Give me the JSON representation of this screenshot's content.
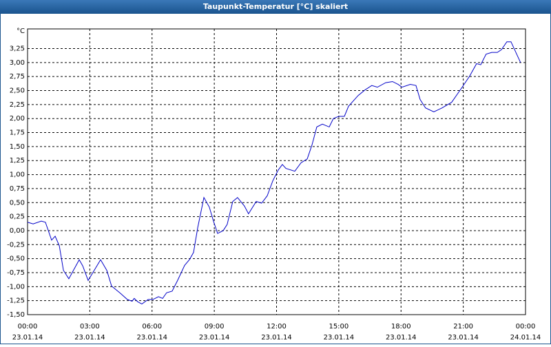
{
  "chart_data": {
    "type": "line",
    "title": "Taupunkt-Temperatur [°C] skaliert",
    "y_label": "°C",
    "x": [
      0,
      0.27,
      0.66,
      0.86,
      1.16,
      1.33,
      1.53,
      1.73,
      1.99,
      2.49,
      2.66,
      2.92,
      3.52,
      3.82,
      4.05,
      4.48,
      4.81,
      5.04,
      5.14,
      5.31,
      5.51,
      5.81,
      6.04,
      6.31,
      6.51,
      6.7,
      6.97,
      7.23,
      7.57,
      7.8,
      8.0,
      8.2,
      8.5,
      8.76,
      8.96,
      9.16,
      9.43,
      9.62,
      9.89,
      10.12,
      10.45,
      10.65,
      11.02,
      11.28,
      11.55,
      11.82,
      12.08,
      12.28,
      12.45,
      12.88,
      13.18,
      13.48,
      13.71,
      13.94,
      14.21,
      14.54,
      14.74,
      15.0,
      15.27,
      15.47,
      15.93,
      16.26,
      16.59,
      16.86,
      17.26,
      17.59,
      17.86,
      18.05,
      18.45,
      18.72,
      18.92,
      19.18,
      19.58,
      19.98,
      20.44,
      20.91,
      21.31,
      21.64,
      21.84,
      22.1,
      22.37,
      22.64,
      22.84,
      23.1,
      23.3,
      23.76
    ],
    "series": [
      {
        "color": "#0000c8",
        "values": [
          0.15,
          0.12,
          0.17,
          0.15,
          -0.17,
          -0.1,
          -0.27,
          -0.71,
          -0.86,
          -0.52,
          -0.63,
          -0.89,
          -0.52,
          -0.71,
          -0.99,
          -1.12,
          -1.23,
          -1.26,
          -1.21,
          -1.27,
          -1.31,
          -1.23,
          -1.23,
          -1.18,
          -1.21,
          -1.11,
          -1.08,
          -0.89,
          -0.62,
          -0.52,
          -0.39,
          0.05,
          0.59,
          0.42,
          0.17,
          -0.05,
          0.0,
          0.11,
          0.52,
          0.59,
          0.44,
          0.3,
          0.52,
          0.49,
          0.62,
          0.89,
          1.08,
          1.18,
          1.11,
          1.06,
          1.21,
          1.28,
          1.53,
          1.85,
          1.9,
          1.85,
          2.0,
          2.04,
          2.04,
          2.22,
          2.41,
          2.51,
          2.59,
          2.56,
          2.64,
          2.66,
          2.61,
          2.56,
          2.61,
          2.59,
          2.34,
          2.19,
          2.12,
          2.19,
          2.29,
          2.54,
          2.76,
          2.98,
          2.96,
          3.15,
          3.18,
          3.18,
          3.23,
          3.37,
          3.37,
          3.0
        ]
      }
    ],
    "xlim": [
      0,
      24
    ],
    "xticks": [
      {
        "value": 0,
        "label": "00:00",
        "date": "23.01.14"
      },
      {
        "value": 3,
        "label": "03:00",
        "date": "23.01.14"
      },
      {
        "value": 6,
        "label": "06:00",
        "date": "23.01.14"
      },
      {
        "value": 9,
        "label": "09:00",
        "date": "23.01.14"
      },
      {
        "value": 12,
        "label": "12:00",
        "date": "23.01.14"
      },
      {
        "value": 15,
        "label": "15:00",
        "date": "23.01.14"
      },
      {
        "value": 18,
        "label": "18:00",
        "date": "23.01.14"
      },
      {
        "value": 21,
        "label": "21:00",
        "date": "23.01.14"
      },
      {
        "value": 24,
        "label": "00:00",
        "date": "24.01.14"
      }
    ],
    "ylim": [
      -1.5,
      3.6
    ],
    "yticks": [
      {
        "value": -1.5,
        "label": "-1,50"
      },
      {
        "value": -1.25,
        "label": "-1,25"
      },
      {
        "value": -1,
        "label": "-1,00"
      },
      {
        "value": -0.75,
        "label": "-0,75"
      },
      {
        "value": -0.5,
        "label": "-0,50"
      },
      {
        "value": -0.25,
        "label": "-0,25"
      },
      {
        "value": 0,
        "label": "0,00"
      },
      {
        "value": 0.25,
        "label": "0,25"
      },
      {
        "value": 0.5,
        "label": "0,50"
      },
      {
        "value": 0.75,
        "label": "0,75"
      },
      {
        "value": 1,
        "label": "1,00"
      },
      {
        "value": 1.25,
        "label": "1,25"
      },
      {
        "value": 1.5,
        "label": "1,50"
      },
      {
        "value": 1.75,
        "label": "1,75"
      },
      {
        "value": 2,
        "label": "2,00"
      },
      {
        "value": 2.25,
        "label": "2,25"
      },
      {
        "value": 2.5,
        "label": "2,50"
      },
      {
        "value": 2.75,
        "label": "2,75"
      },
      {
        "value": 3,
        "label": "3,00"
      },
      {
        "value": 3.25,
        "label": "3,25"
      }
    ],
    "grid": true
  }
}
